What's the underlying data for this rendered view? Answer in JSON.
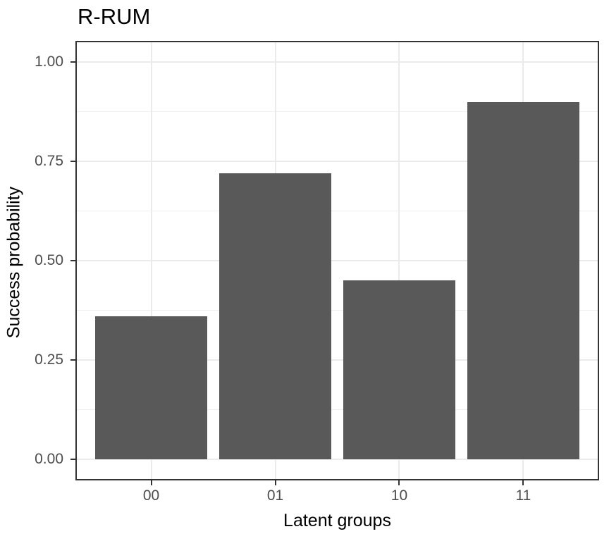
{
  "figure": {
    "background": "#FFFFFF"
  },
  "chart_data": {
    "type": "bar",
    "title": "R-RUM",
    "categories": [
      "00",
      "01",
      "10",
      "11"
    ],
    "values": [
      0.36,
      0.72,
      0.45,
      0.9
    ],
    "xlabel": "Latent groups",
    "ylabel": "Success probability",
    "ylim": [
      0,
      1
    ],
    "axis_expansion_mult": 0.05,
    "y_major_ticks": [
      0,
      0.25,
      0.5,
      0.75,
      1.0
    ],
    "y_tick_labels": [
      "0.00",
      "0.25",
      "0.50",
      "0.75",
      "1.00"
    ],
    "y_minor_ticks": [
      0.125,
      0.375,
      0.625,
      0.875
    ],
    "bar_relative_width": 0.9,
    "grid": "horizontal major+minor, vertical major at category centers",
    "legend": "none",
    "style": {
      "bar_fill": "#595959",
      "grid_major_color": "#EBEBEB",
      "grid_minor_color": "#F0F0F0",
      "panel_border_color": "#333333",
      "tick_mark_color": "#333333",
      "tick_label_color": "#4D4D4D",
      "title_color": "#000000",
      "axis_title_color": "#000000",
      "background": "#FFFFFF"
    }
  }
}
